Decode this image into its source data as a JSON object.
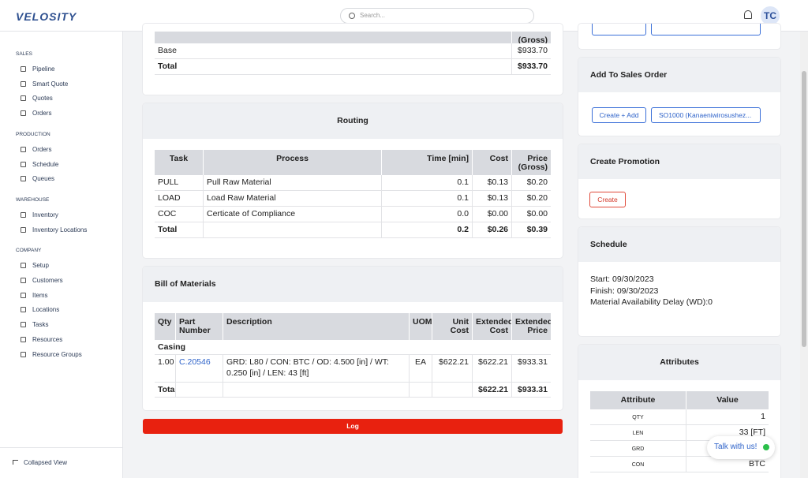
{
  "header": {
    "logo": "VELOSITY",
    "search_placeholder": "Search...",
    "avatar": "TC"
  },
  "sidebar": {
    "sections": [
      {
        "title": "SALES",
        "items": [
          "Pipeline",
          "Smart Quote",
          "Quotes",
          "Orders"
        ]
      },
      {
        "title": "PRODUCTION",
        "items": [
          "Orders",
          "Schedule",
          "Queues"
        ]
      },
      {
        "title": "WAREHOUSE",
        "items": [
          "Inventory",
          "Inventory Locations"
        ]
      },
      {
        "title": "COMPANY",
        "items": [
          "Setup",
          "Customers",
          "Items",
          "Locations",
          "Tasks",
          "Resources",
          "Resource Groups"
        ]
      }
    ],
    "collapse": "Collapsed View"
  },
  "pricing": {
    "columns": [
      null,
      "(Gross)"
    ],
    "rows": [
      [
        "Base",
        "$933.70"
      ],
      [
        "Total",
        "$933.70"
      ]
    ]
  },
  "routing": {
    "title": "Routing",
    "columns": [
      "Task",
      "Process",
      "Time [min]",
      "Cost",
      "Price (Gross)"
    ],
    "rows": [
      [
        "PULL",
        "Pull Raw Material",
        "0.1",
        "$0.13",
        "$0.20"
      ],
      [
        "LOAD",
        "Load Raw Material",
        "0.1",
        "$0.13",
        "$0.20"
      ],
      [
        "COC",
        "Certicate of Compliance",
        "0.0",
        "$0.00",
        "$0.00"
      ],
      [
        "Total",
        null,
        "0.2",
        "$0.26",
        "$0.39"
      ]
    ]
  },
  "bom": {
    "title": "Bill of Materials",
    "columns": [
      "Qty",
      "Part Number",
      "Description",
      "UOM",
      "Unit Cost",
      "Extended Cost",
      "Extended Price"
    ],
    "group": "Casing",
    "rows": [
      [
        "1.00",
        "C.20546",
        "GRD: L80 / CON: BTC / OD: 4.500 [in] / WT: 0.250 [in] / LEN: 43 [ft]",
        "EA",
        "$622.21",
        "$622.21",
        "$933.31"
      ],
      [
        "Total",
        null,
        null,
        null,
        null,
        "$622.21",
        "$933.31"
      ]
    ]
  },
  "log_button": "Log",
  "sales_order": {
    "title": "Add To Sales Order",
    "create_add": "Create + Add",
    "select": "SO1000 (Kanaeniwirosushez..."
  },
  "promotion": {
    "title": "Create Promotion",
    "create": "Create"
  },
  "schedule": {
    "title": "Schedule",
    "lines": [
      "Start: 09/30/2023",
      "Finish: 09/30/2023",
      "Material Availability Delay (WD):0"
    ]
  },
  "attributes": {
    "title": "Attributes",
    "columns": [
      "Attribute",
      "Value"
    ],
    "rows": [
      [
        "QTY",
        "1"
      ],
      [
        "LEN",
        "33 [FT]"
      ],
      [
        "GRD",
        null
      ],
      [
        "CON",
        "BTC"
      ]
    ]
  },
  "chat": "Talk with us!"
}
